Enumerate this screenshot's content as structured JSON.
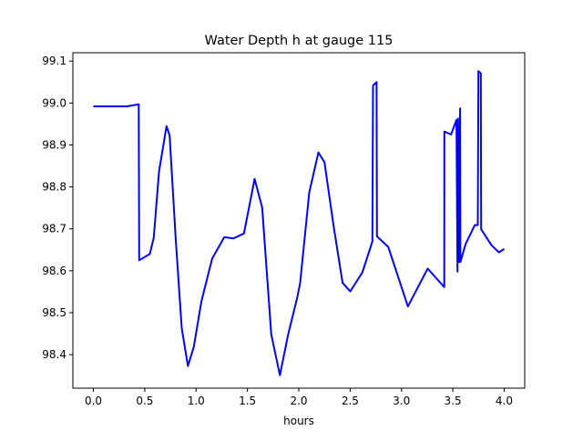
{
  "chart_data": {
    "type": "line",
    "title": "Water Depth h at gauge 115",
    "xlabel": "hours",
    "ylabel": "",
    "xlim": [
      -0.2,
      4.2
    ],
    "ylim": [
      98.32,
      99.12
    ],
    "xticks": [
      0.0,
      0.5,
      1.0,
      1.5,
      2.0,
      2.5,
      3.0,
      3.5,
      4.0
    ],
    "xtick_labels": [
      "0.0",
      "0.5",
      "1.0",
      "1.5",
      "2.0",
      "2.5",
      "3.0",
      "3.5",
      "4.0"
    ],
    "yticks": [
      98.4,
      98.5,
      98.6,
      98.7,
      98.8,
      98.9,
      99.0,
      99.1
    ],
    "ytick_labels": [
      "98.4",
      "98.5",
      "98.6",
      "98.7",
      "98.8",
      "98.9",
      "99.0",
      "99.1"
    ],
    "grid": false,
    "series": [
      {
        "name": "h",
        "color": "#0000ff",
        "x": [
          0.0,
          0.328,
          0.441,
          0.446,
          0.55,
          0.588,
          0.639,
          0.712,
          0.742,
          0.801,
          0.86,
          0.92,
          0.978,
          1.052,
          1.156,
          1.274,
          1.363,
          1.466,
          1.57,
          1.643,
          1.732,
          1.816,
          1.896,
          1.984,
          2.013,
          2.102,
          2.191,
          2.25,
          2.339,
          2.427,
          2.501,
          2.619,
          2.717,
          2.723,
          2.758,
          2.761,
          2.871,
          3.063,
          3.151,
          3.255,
          3.417,
          3.418,
          3.483,
          3.536,
          3.545,
          3.551,
          3.559,
          3.571,
          3.574,
          3.625,
          3.714,
          3.743,
          3.749,
          3.772,
          3.776,
          3.876,
          3.949,
          4.0
        ],
        "y": [
          98.992,
          98.992,
          98.997,
          98.625,
          98.64,
          98.679,
          98.837,
          98.945,
          98.923,
          98.679,
          98.463,
          98.373,
          98.419,
          98.527,
          98.629,
          98.68,
          98.677,
          98.689,
          98.819,
          98.751,
          98.448,
          98.351,
          98.448,
          98.535,
          98.571,
          98.787,
          98.882,
          98.859,
          98.707,
          98.571,
          98.551,
          98.596,
          98.67,
          99.042,
          99.05,
          98.682,
          98.657,
          98.515,
          98.556,
          98.605,
          98.561,
          98.932,
          98.925,
          98.96,
          98.598,
          98.963,
          98.621,
          98.987,
          98.621,
          98.664,
          98.709,
          98.709,
          99.076,
          99.071,
          98.699,
          98.661,
          98.644,
          98.652
        ]
      }
    ]
  }
}
